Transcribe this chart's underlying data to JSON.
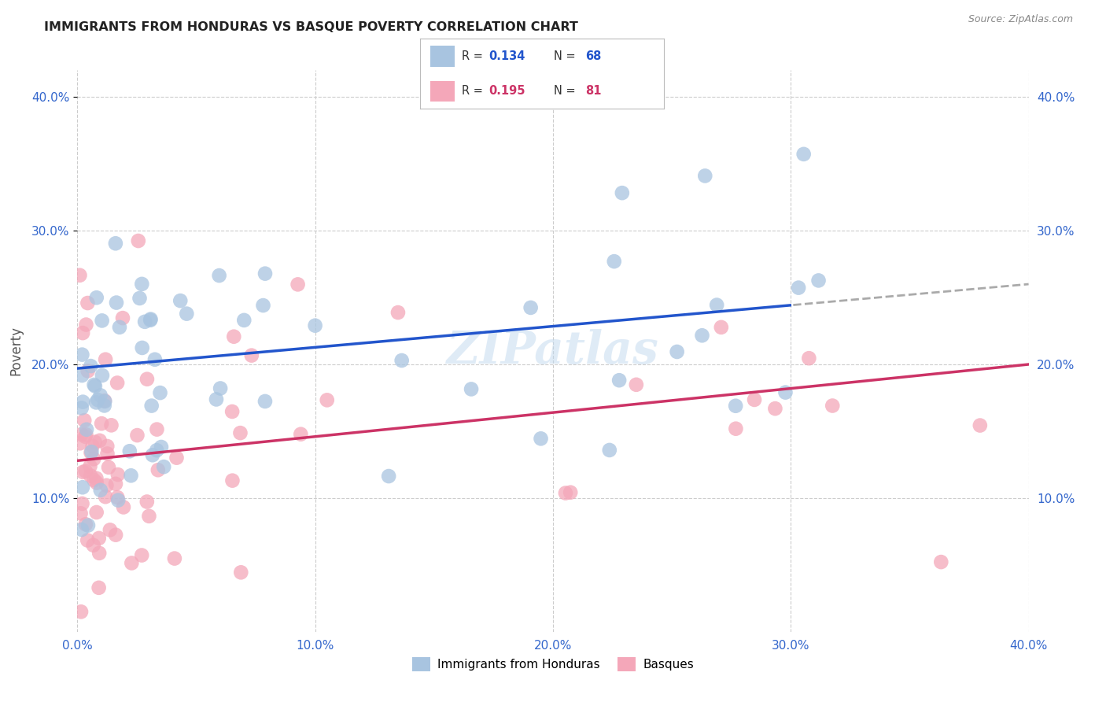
{
  "title": "IMMIGRANTS FROM HONDURAS VS BASQUE POVERTY CORRELATION CHART",
  "source": "Source: ZipAtlas.com",
  "ylabel": "Poverty",
  "xlim": [
    0.0,
    0.4
  ],
  "ylim": [
    0.0,
    0.42
  ],
  "xtick_labels": [
    "0.0%",
    "10.0%",
    "20.0%",
    "30.0%",
    "40.0%"
  ],
  "xtick_vals": [
    0.0,
    0.1,
    0.2,
    0.3,
    0.4
  ],
  "ytick_labels": [
    "10.0%",
    "20.0%",
    "30.0%",
    "40.0%"
  ],
  "ytick_vals": [
    0.1,
    0.2,
    0.3,
    0.4
  ],
  "legend_series1_label": "Immigrants from Honduras",
  "legend_series2_label": "Basques",
  "series1_color": "#a8c4e0",
  "series2_color": "#f4a7b9",
  "series1_line_color": "#2255cc",
  "series2_line_color": "#cc3366",
  "trendline_dashed_color": "#aaaaaa",
  "watermark": "ZIPatlas",
  "background_color": "#ffffff",
  "grid_color": "#cccccc",
  "title_color": "#222222",
  "source_color": "#888888",
  "tick_color": "#3366cc",
  "ylabel_color": "#555555",
  "legend_text_color": "#333333",
  "blue_line_start_x": 0.0,
  "blue_line_start_y": 0.197,
  "blue_line_end_x": 0.4,
  "blue_line_end_y": 0.26,
  "blue_line_solid_end_x": 0.3,
  "pink_line_start_x": 0.0,
  "pink_line_start_y": 0.128,
  "pink_line_end_x": 0.4,
  "pink_line_end_y": 0.2
}
